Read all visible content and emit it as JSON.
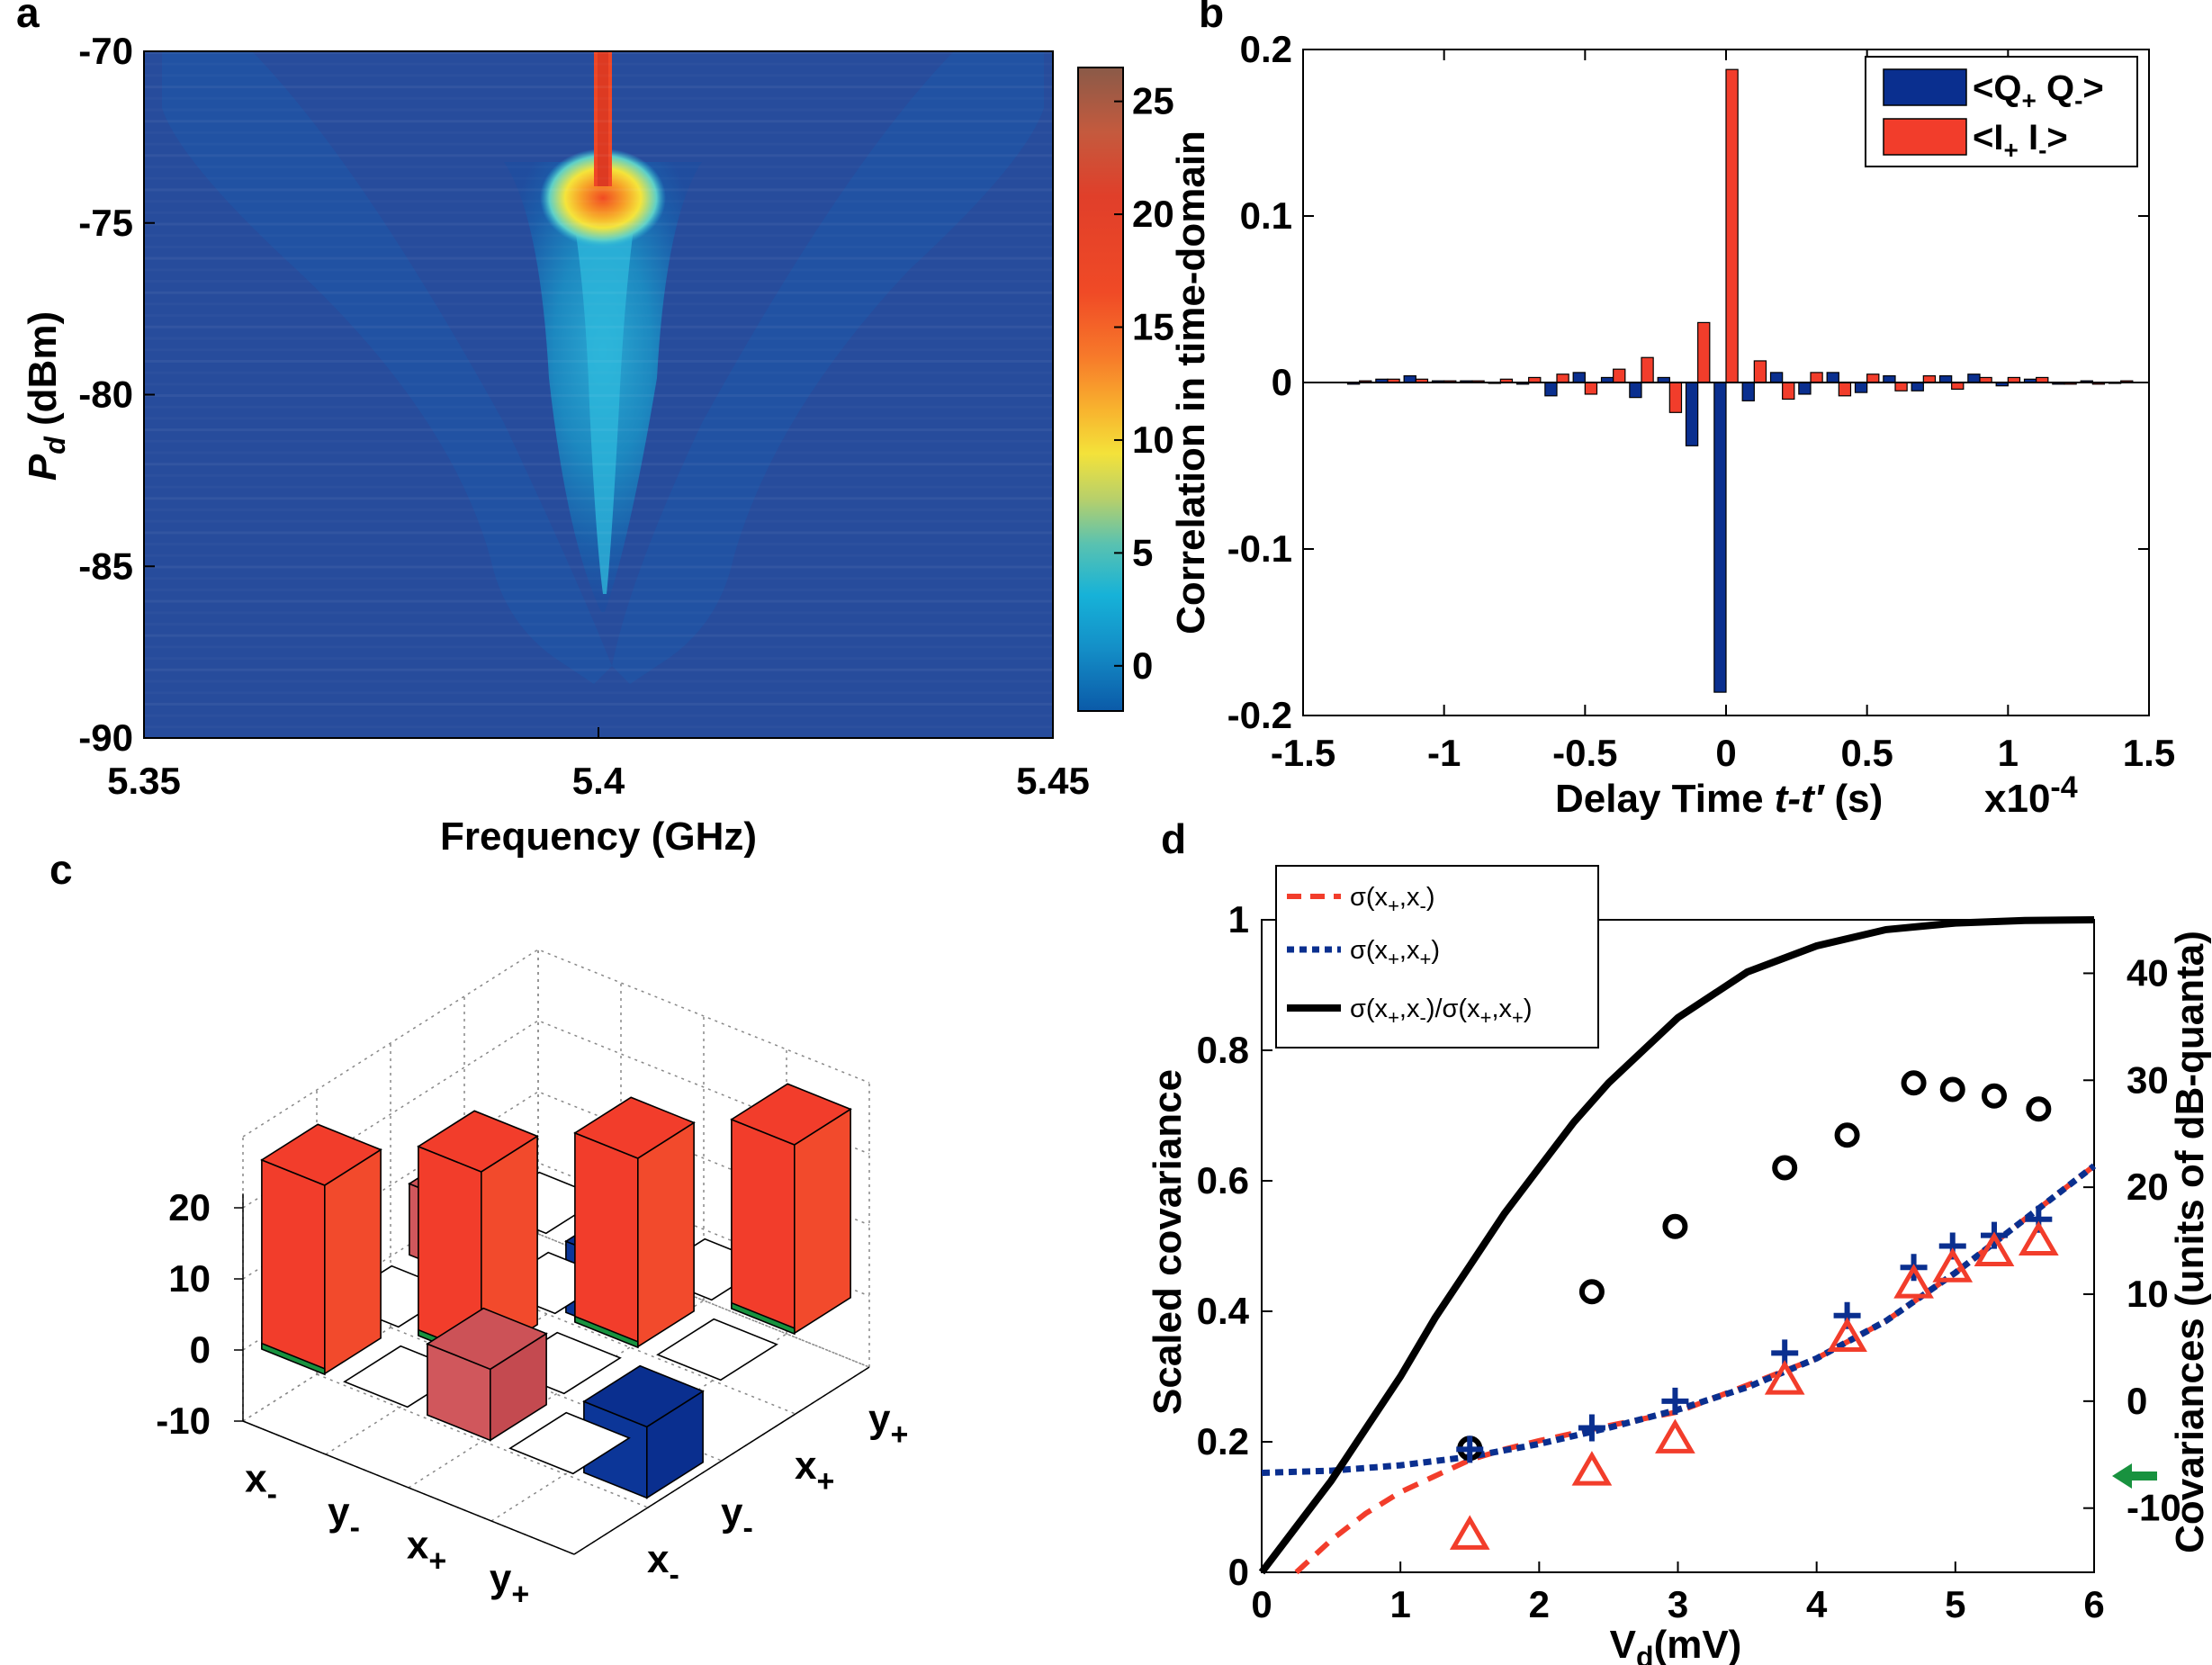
{
  "panels": {
    "a": {
      "label": "a"
    },
    "b": {
      "label": "b"
    },
    "c": {
      "label": "c"
    },
    "d": {
      "label": "d"
    }
  },
  "colors": {
    "blue": "#0a2f8f",
    "red": "#f23d2b",
    "black": "#000000",
    "green": "#18923f"
  },
  "chart_data": [
    {
      "panel": "a",
      "type": "heatmap",
      "xlabel": "Frequency (GHz)",
      "ylabel": "P_d (dBm)",
      "ylabel_main": "P",
      "ylabel_sub": "d",
      "ylabel_rest": " (dBm)",
      "xlim": [
        5.35,
        5.45
      ],
      "ylim": [
        -90,
        -70
      ],
      "xticks": [
        5.35,
        5.4,
        5.45
      ],
      "xtick_labels": [
        "5.35",
        "5.4",
        "5.45"
      ],
      "yticks": [
        -70,
        -75,
        -80,
        -85,
        -90
      ],
      "ytick_labels": [
        "-70",
        "-75",
        "-80",
        "-85",
        "-90"
      ],
      "colorbar": {
        "range": [
          -2,
          26.5
        ],
        "ticks": [
          0,
          5,
          10,
          15,
          20,
          25
        ],
        "tick_labels": [
          "0",
          "5",
          "10",
          "15",
          "20",
          "25"
        ]
      },
      "description_values": {
        "peak_frequency": 5.4
      }
    },
    {
      "panel": "b",
      "type": "bar",
      "ylabel": "Correlation in time-domain",
      "xlabel_parts": [
        "Delay  Time ",
        "t-t′",
        " (s)"
      ],
      "x_exponent_base": "x10",
      "x_exponent_power": "-4",
      "xlim": [
        -1.5,
        1.5
      ],
      "ylim": [
        -0.2,
        0.2
      ],
      "xticks": [
        -1.5,
        -1,
        -0.5,
        0,
        0.5,
        1,
        1.5
      ],
      "xtick_labels": [
        "-1.5",
        "-1",
        "-0.5",
        "0",
        "0.5",
        "1",
        "1.5"
      ],
      "yticks": [
        0.2,
        0.1,
        0,
        -0.1,
        -0.2
      ],
      "ytick_labels": [
        "0.2",
        "0.1",
        "0",
        "-0.1",
        "-0.2"
      ],
      "x": [
        -1.3,
        -1.2,
        -1.1,
        -1.0,
        -0.9,
        -0.8,
        -0.7,
        -0.6,
        -0.5,
        -0.4,
        -0.3,
        -0.2,
        -0.1,
        0,
        0.1,
        0.2,
        0.3,
        0.4,
        0.5,
        0.6,
        0.7,
        0.8,
        0.9,
        1.0,
        1.1,
        1.2,
        1.3,
        1.4
      ],
      "series": [
        {
          "name": "<Q+Q->",
          "legend_main": "<Q",
          "legend_sub1": "+",
          "legend_mid": " Q",
          "legend_sub2": "-",
          "legend_end": ">",
          "values": [
            -0.001,
            0.002,
            0.004,
            0.001,
            0.001,
            0.0,
            -0.001,
            -0.008,
            0.006,
            0.003,
            -0.009,
            0.003,
            -0.038,
            -0.186,
            -0.011,
            0.006,
            -0.007,
            0.006,
            -0.006,
            0.004,
            -0.005,
            0.004,
            0.005,
            -0.002,
            0.002,
            -0.001,
            0.001,
            0.0
          ]
        },
        {
          "name": "<I+I->",
          "legend_main": "<I",
          "legend_sub1": "+",
          "legend_mid": " I",
          "legend_sub2": "-",
          "legend_end": ">",
          "values": [
            0.001,
            0.002,
            0.002,
            0.001,
            0.001,
            0.002,
            0.003,
            0.005,
            -0.007,
            0.008,
            0.015,
            -0.018,
            0.036,
            0.188,
            0.013,
            -0.01,
            0.006,
            -0.008,
            0.005,
            -0.005,
            0.004,
            -0.004,
            0.003,
            0.003,
            0.003,
            -0.001,
            -0.001,
            0.001
          ]
        }
      ],
      "legend_position": "top-right"
    },
    {
      "panel": "c",
      "type": "bar",
      "subtype": "3d-bar",
      "zlim": [
        -10,
        20
      ],
      "zticks": [
        20,
        10,
        0,
        -10
      ],
      "ztick_labels": [
        "20",
        "10",
        "0",
        "-10"
      ],
      "row_labels": [
        {
          "main": "x",
          "sub": "-"
        },
        {
          "main": "y",
          "sub": "-"
        },
        {
          "main": "x",
          "sub": "+"
        },
        {
          "main": "y",
          "sub": "+"
        }
      ],
      "col_labels": [
        {
          "main": "x",
          "sub": "-"
        },
        {
          "main": "y",
          "sub": "-"
        },
        {
          "main": "x",
          "sub": "+"
        },
        {
          "main": "y",
          "sub": "+"
        }
      ],
      "matrix": [
        [
          26.5,
          0,
          10,
          0
        ],
        [
          0,
          26.5,
          0,
          -10
        ],
        [
          10,
          0,
          26.5,
          0
        ],
        [
          0,
          -10,
          0,
          26.5
        ]
      ]
    },
    {
      "panel": "d",
      "type": "scatter",
      "xlabel_main": "V",
      "xlabel_sub": "d",
      "xlabel_rest": "(mV)",
      "ylabel_left": "Scaled covariance",
      "ylabel_right": "Covariances (units of dB-quanta)",
      "xlim": [
        0,
        6
      ],
      "ylim_left": [
        0,
        1
      ],
      "ylim_right": [
        -16,
        45
      ],
      "xticks": [
        0,
        1,
        2,
        3,
        4,
        5,
        6
      ],
      "xtick_labels": [
        "0",
        "1",
        "2",
        "3",
        "4",
        "5",
        "6"
      ],
      "yticks_left": [
        0,
        0.2,
        0.4,
        0.6,
        0.8,
        1
      ],
      "ytick_labels_left": [
        "0",
        "0.2",
        "0.4",
        "0.6",
        "0.8",
        "1"
      ],
      "yticks_right": [
        -10,
        0,
        10,
        20,
        30,
        40
      ],
      "ytick_labels_right": [
        "-10",
        "0",
        "10",
        "20",
        "30",
        "40"
      ],
      "legend": [
        {
          "text_a": "σ(x",
          "sub_a": "+",
          "text_b": ",x",
          "sub_b": "-",
          "text_c": ")"
        },
        {
          "text_a": "σ(x",
          "sub_a": "+",
          "text_b": ",x",
          "sub_b": "+",
          "text_c": ")"
        },
        {
          "text_a": "σ(x",
          "sub_a": "+",
          "text_b": ",x",
          "sub_b": "-",
          "text_c": ")/σ(x",
          "sub_c": "+",
          "text_d": ",x",
          "sub_d": "+",
          "text_e": ")"
        }
      ],
      "legend_position": "top-left",
      "curves": {
        "ratio": {
          "x": [
            0,
            0.25,
            0.5,
            0.75,
            1,
            1.25,
            1.5,
            1.75,
            2,
            2.25,
            2.5,
            2.75,
            3,
            3.5,
            4,
            4.5,
            5,
            5.5,
            6
          ],
          "y": [
            0,
            0.07,
            0.14,
            0.22,
            0.3,
            0.39,
            0.47,
            0.55,
            0.62,
            0.69,
            0.75,
            0.8,
            0.85,
            0.92,
            0.96,
            0.985,
            0.995,
            0.999,
            1.0
          ]
        },
        "sigma_pm": {
          "x": [
            0.25,
            0.5,
            0.75,
            1,
            1.25,
            1.5,
            1.75,
            2,
            2.5,
            3,
            3.5,
            4,
            4.5,
            5,
            5.5,
            6
          ],
          "y": [
            -16,
            -13,
            -10.5,
            -8.5,
            -7,
            -5.5,
            -4.5,
            -3.7,
            -2.3,
            -1,
            1.5,
            4,
            7.5,
            12,
            17,
            22
          ]
        },
        "sigma_pp": {
          "x": [
            0,
            0.5,
            1,
            1.5,
            2,
            2.5,
            3,
            3.5,
            4,
            4.5,
            5,
            5.5,
            6
          ],
          "y": [
            -6.7,
            -6.5,
            -6,
            -5.2,
            -4,
            -2.5,
            -0.8,
            1.3,
            4,
            7.5,
            12,
            17,
            22
          ]
        }
      },
      "points": {
        "ratio_circles": {
          "x": [
            1.5,
            2.38,
            2.98,
            3.77,
            4.22,
            4.7,
            4.98,
            5.28,
            5.6
          ],
          "y": [
            0.19,
            0.43,
            0.53,
            0.62,
            0.67,
            0.75,
            0.74,
            0.73,
            0.71
          ]
        },
        "sigma_pp_plus": {
          "x": [
            1.5,
            2.38,
            2.98,
            3.77,
            4.22,
            4.7,
            4.98,
            5.28,
            5.6
          ],
          "y": [
            -4.5,
            -2.5,
            0,
            4.5,
            8,
            12.5,
            14.5,
            15.5,
            17
          ]
        },
        "sigma_pm_triangles": {
          "x": [
            1.5,
            2.38,
            2.98,
            3.77,
            4.22,
            4.7,
            4.98,
            5.28,
            5.6
          ],
          "y": [
            -12.5,
            -6.5,
            -3.5,
            2,
            6,
            11,
            12.5,
            14,
            15
          ]
        }
      },
      "arrow_right_value": -7
    }
  ]
}
